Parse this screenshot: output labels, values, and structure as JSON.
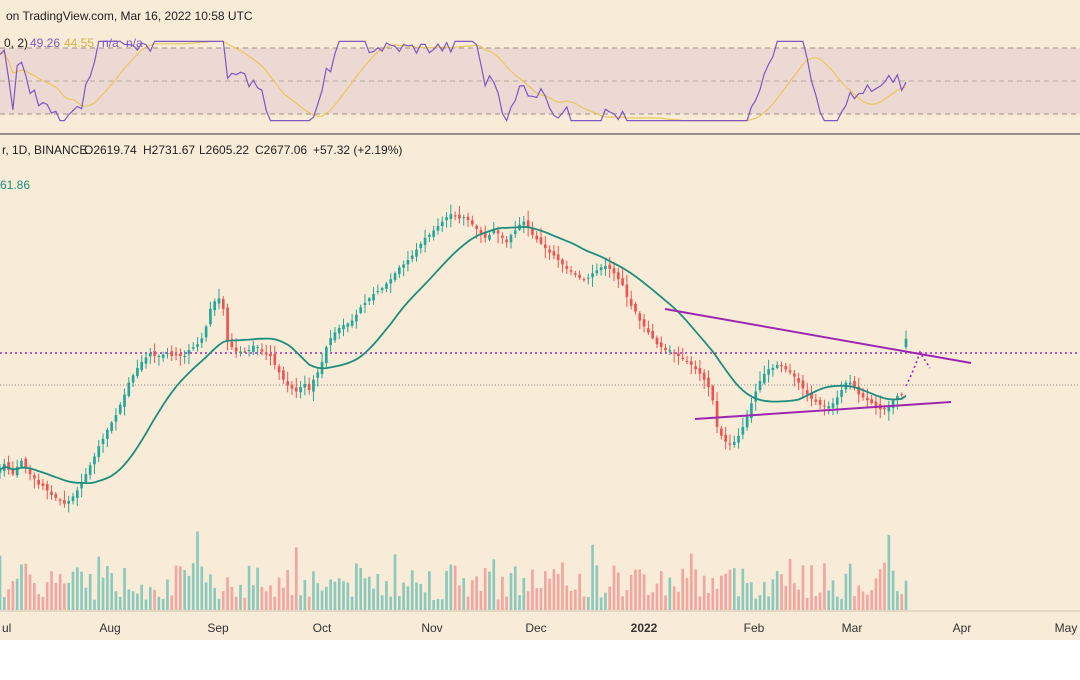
{
  "header": {
    "attribution": "on TradingView.com, Mar 16, 2022 10:58 UTC"
  },
  "rsi_legend": {
    "params": "0, 2)",
    "value": "49.26",
    "ma_value": "44.55",
    "na1": "n/a",
    "na2": "n/a"
  },
  "price_legend": {
    "symbol": "r, 1D, BINANCE",
    "open": "O2619.74",
    "high": "H2731.67",
    "low": "L2605.22",
    "close": "C2677.06",
    "change": "+57.32 (+2.19%)"
  },
  "ma_legend": {
    "value": "61.86"
  },
  "colors": {
    "background": "#f8ecd8",
    "rsi_band": "#ecd9d4",
    "up": "#26a69a",
    "down": "#ef5350",
    "ma": "#1e8d7d",
    "rsi": "#7e57c2",
    "rsi_ma": "#e8c85a",
    "trendline": "#9c27b0",
    "volume_up": "#8cc9bd",
    "volume_down": "#f3a5a0"
  },
  "chart_data": {
    "type": "candlestick",
    "x_axis_labels": [
      "ul",
      "Aug",
      "Sep",
      "Oct",
      "Nov",
      "Dec",
      "2022",
      "Feb",
      "Mar",
      "Apr",
      "May"
    ],
    "series": [
      {
        "name": "price_close",
        "values": [
          1790,
          1830,
          1790,
          1760,
          1810,
          1850,
          1800,
          1760,
          1730,
          1690,
          1680,
          1650,
          1620,
          1600,
          1580,
          1560,
          1580,
          1610,
          1650,
          1700,
          1760,
          1820,
          1880,
          1950,
          2000,
          2060,
          2110,
          2160,
          2230,
          2300,
          2380,
          2430,
          2480,
          2520,
          2550,
          2580,
          2560,
          2560,
          2570,
          2580,
          2560,
          2570,
          2560,
          2560,
          2600,
          2620,
          2640,
          2680,
          2760,
          2880,
          2930,
          2950,
          2880,
          2660,
          2620,
          2590,
          2590,
          2590,
          2600,
          2630,
          2620,
          2590,
          2570,
          2560,
          2500,
          2450,
          2400,
          2360,
          2340,
          2320,
          2350,
          2370,
          2330,
          2400,
          2450,
          2520,
          2620,
          2680,
          2720,
          2750,
          2770,
          2780,
          2800,
          2840,
          2890,
          2920,
          2950,
          2980,
          3000,
          3020,
          3050,
          3080,
          3120,
          3160,
          3180,
          3210,
          3240,
          3280,
          3320,
          3360,
          3380,
          3410,
          3440,
          3470,
          3500,
          3520,
          3510,
          3490,
          3500,
          3480,
          3450,
          3420,
          3390,
          3360,
          3380,
          3420,
          3390,
          3360,
          3330,
          3380,
          3410,
          3450,
          3470,
          3430,
          3380,
          3350,
          3320,
          3290,
          3260,
          3240,
          3210,
          3180,
          3150,
          3130,
          3110,
          3090,
          3080,
          3090,
          3120,
          3140,
          3160,
          3170,
          3150,
          3120,
          3080,
          3040,
          2960,
          2900,
          2860,
          2800,
          2760,
          2720,
          2680,
          2640,
          2620,
          2600,
          2600,
          2580,
          2560,
          2540,
          2520,
          2500,
          2470,
          2440,
          2400,
          2350,
          2260,
          2080,
          2020,
          1980,
          1960,
          1980,
          2020,
          2080,
          2150,
          2240,
          2320,
          2390,
          2440,
          2470,
          2480,
          2500,
          2490,
          2470,
          2450,
          2420,
          2380,
          2340,
          2300,
          2270,
          2250,
          2230,
          2220,
          2220,
          2240,
          2280,
          2330,
          2380,
          2380,
          2340,
          2300,
          2280,
          2260,
          2240,
          2220,
          2200,
          2200,
          2220,
          2260,
          2290,
          2300,
          2677
        ]
      }
    ],
    "last_close": 2677.06,
    "last_open": 2619.74,
    "last_high": 2731.67,
    "last_low": 2605.22,
    "last_change": 57.32,
    "last_change_pct": 2.19,
    "annotations": [
      "descending resistance trendline",
      "ascending support trendline",
      "dotted horizontal level",
      "dotted projected path"
    ]
  }
}
